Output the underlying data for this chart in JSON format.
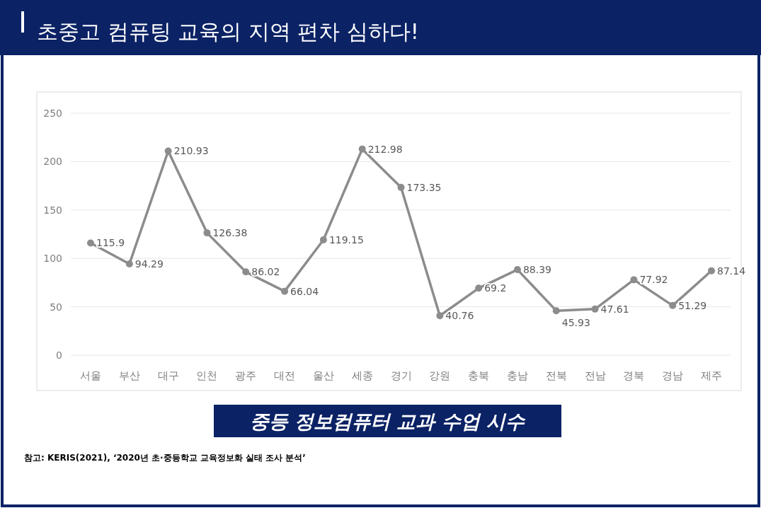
{
  "chart_data": {
    "type": "line",
    "title": "초중고 컴퓨팅 교육의 지역 편차 심하다!",
    "subtitle": "중등 정보컴퓨터 교과 수업 시수",
    "categories": [
      "서울",
      "부산",
      "대구",
      "인천",
      "광주",
      "대전",
      "울산",
      "세종",
      "경기",
      "강원",
      "충북",
      "충남",
      "전북",
      "전남",
      "경북",
      "경남",
      "제주"
    ],
    "values": [
      115.9,
      94.29,
      210.93,
      126.38,
      86.02,
      66.04,
      119.15,
      212.98,
      173.35,
      40.76,
      69.2,
      88.39,
      45.93,
      47.61,
      77.92,
      51.29,
      87.14
    ],
    "color": "#8c8c8c",
    "ylim": [
      0,
      250
    ],
    "yticks": [
      0,
      50,
      100,
      150,
      200,
      250
    ],
    "grid": "y",
    "marker": "circle",
    "data_labels": true,
    "annotations": [
      "참고: KERIS(2021), ‘2020년 초·중등학교 교육정보화 실태 조사 분석’"
    ]
  }
}
